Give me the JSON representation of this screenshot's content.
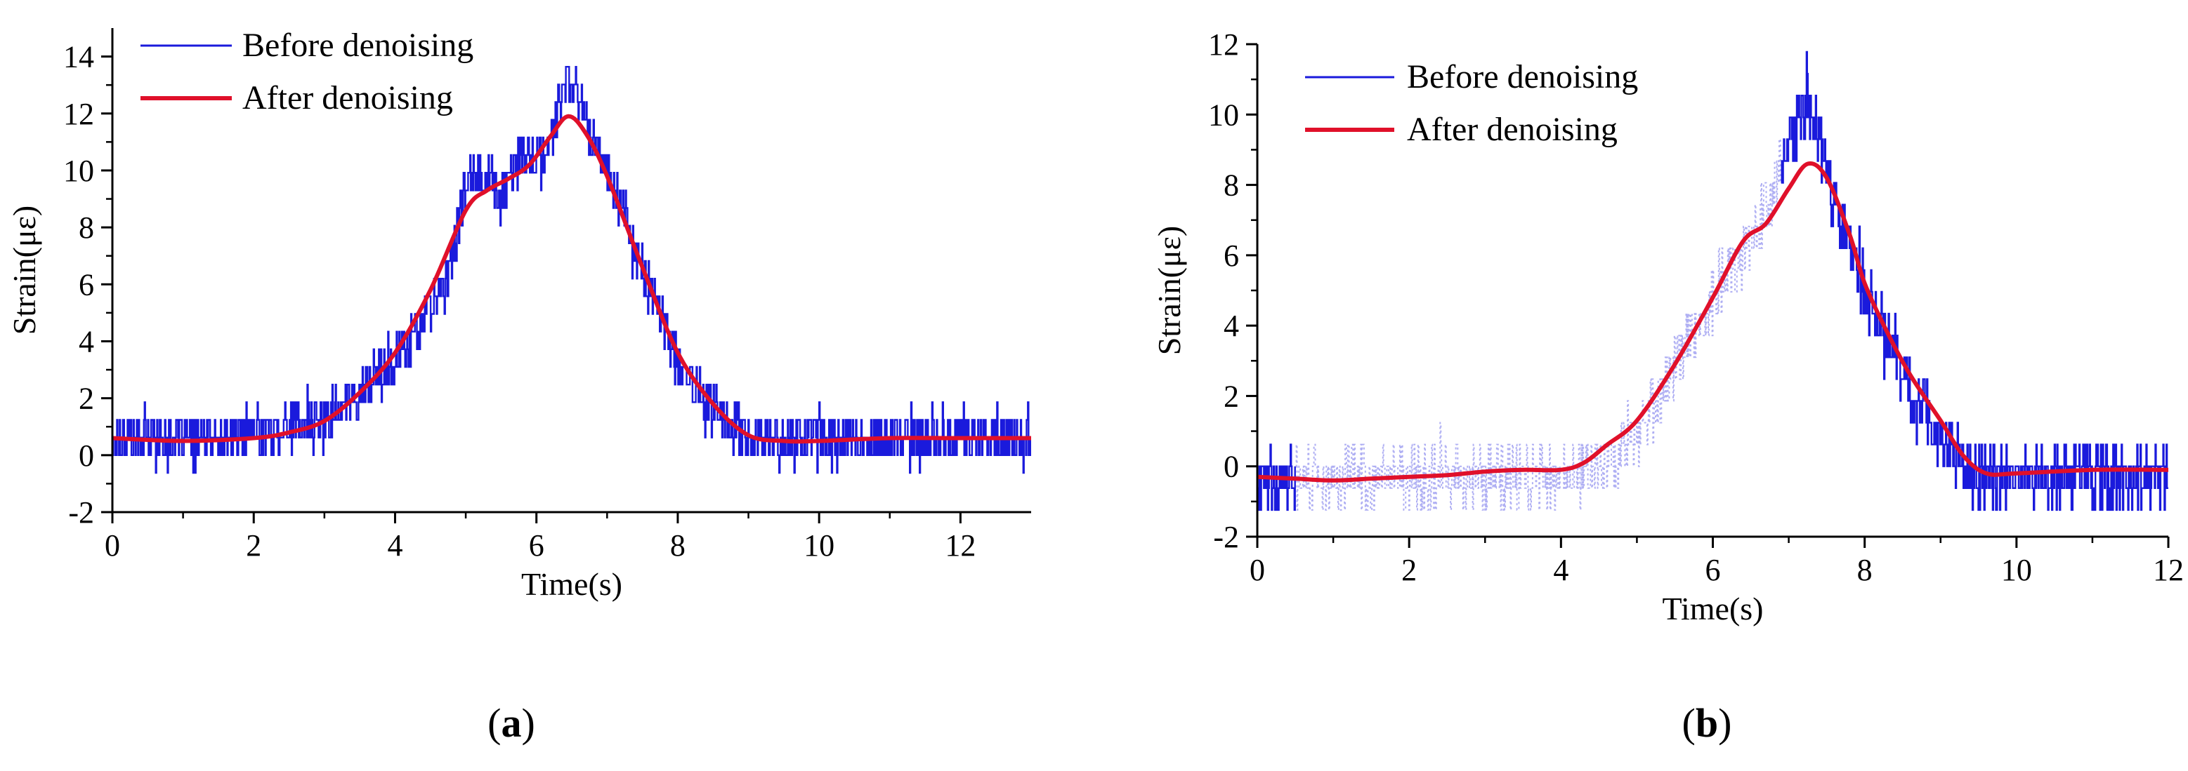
{
  "chart_data": [
    {
      "panel_label_open": "(",
      "panel_label": "a",
      "panel_label_close": ")",
      "type": "line",
      "title": "",
      "xlabel": "Time(s)",
      "ylabel": "Strain(με)",
      "xlim": [
        0,
        13
      ],
      "ylim": [
        -2,
        15
      ],
      "xticks": [
        0,
        2,
        4,
        6,
        8,
        10,
        12
      ],
      "xtick_labels": [
        "0",
        "2",
        "4",
        "6",
        "8",
        "10",
        "12"
      ],
      "yticks": [
        -2,
        0,
        2,
        4,
        6,
        8,
        10,
        12,
        14
      ],
      "ytick_labels": [
        "-2",
        "0",
        "2",
        "4",
        "6",
        "8",
        "10",
        "12",
        "14"
      ],
      "legend_position": "top-left",
      "series": [
        {
          "name": "Before denoising",
          "color": "#1a1adc",
          "style": "noisy-stepped",
          "noise_amplitude": 0.75,
          "x": [
            0,
            0.5,
            1,
            1.5,
            2,
            2.5,
            3,
            3.5,
            4,
            4.5,
            4.8,
            5,
            5.3,
            5.5,
            5.7,
            5.9,
            6.1,
            6.3,
            6.45,
            6.6,
            6.8,
            7,
            7.3,
            7.6,
            8,
            8.5,
            9,
            9.5,
            10,
            11,
            12,
            13
          ],
          "y": [
            0.6,
            0.6,
            0.6,
            0.6,
            0.8,
            1.0,
            1.3,
            2.2,
            3.4,
            5.0,
            6.8,
            9.6,
            10.0,
            9.0,
            10.2,
            10.5,
            10.3,
            12.2,
            13.3,
            12.4,
            11.2,
            10.0,
            8.0,
            5.8,
            3.2,
            1.6,
            0.6,
            0.6,
            0.6,
            0.6,
            0.6,
            0.6
          ]
        },
        {
          "name": "After denoising",
          "color": "#e0102a",
          "style": "smooth",
          "x": [
            0,
            1,
            2,
            2.5,
            3,
            3.5,
            4,
            4.5,
            5,
            5.3,
            5.6,
            5.9,
            6.2,
            6.45,
            6.7,
            7,
            7.5,
            8,
            8.5,
            9,
            9.5,
            10,
            11,
            12,
            13
          ],
          "y": [
            0.6,
            0.5,
            0.6,
            0.8,
            1.2,
            2.2,
            3.6,
            5.8,
            8.6,
            9.3,
            9.7,
            10.2,
            11.2,
            11.9,
            11.3,
            9.8,
            6.6,
            3.6,
            1.8,
            0.7,
            0.5,
            0.5,
            0.6,
            0.6,
            0.6
          ]
        }
      ]
    },
    {
      "panel_label_open": "(",
      "panel_label": "b",
      "panel_label_close": ")",
      "type": "line",
      "title": "",
      "xlabel": "Time(s)",
      "ylabel": "Strain(με)",
      "xlim": [
        0,
        12
      ],
      "ylim": [
        -2,
        12
      ],
      "xticks": [
        0,
        2,
        4,
        6,
        8,
        10,
        12
      ],
      "xtick_labels": [
        "0",
        "2",
        "4",
        "6",
        "8",
        "10",
        "12"
      ],
      "yticks": [
        -2,
        0,
        2,
        4,
        6,
        8,
        10,
        12
      ],
      "ytick_labels": [
        "-2",
        "0",
        "2",
        "4",
        "6",
        "8",
        "10",
        "12"
      ],
      "legend_position": "top-left",
      "series": [
        {
          "name": "Before denoising",
          "color": "#1a1adc",
          "style": "noisy-stepped",
          "noise_amplitude": 0.8,
          "faded_range": [
            0.5,
            6.9
          ],
          "x": [
            0,
            0.5,
            1,
            2,
            3,
            4,
            4.5,
            5,
            5.5,
            6,
            6.5,
            6.9,
            7.1,
            7.25,
            7.4,
            7.6,
            8,
            8.5,
            9,
            9.4,
            9.7,
            10,
            11,
            12
          ],
          "y": [
            -0.3,
            -0.3,
            -0.3,
            -0.3,
            -0.3,
            -0.3,
            0.0,
            0.8,
            2.8,
            4.8,
            6.6,
            8.4,
            9.6,
            10.4,
            9.4,
            7.4,
            5.0,
            2.6,
            0.9,
            -0.2,
            -0.3,
            -0.3,
            -0.3,
            -0.3
          ]
        },
        {
          "name": "After denoising",
          "color": "#e0102a",
          "style": "smooth",
          "x": [
            0,
            0.5,
            1,
            1.5,
            2,
            2.5,
            3,
            3.5,
            4,
            4.3,
            4.6,
            5,
            5.5,
            6,
            6.4,
            6.7,
            7,
            7.25,
            7.5,
            7.8,
            8,
            8.3,
            8.6,
            9,
            9.3,
            9.6,
            10,
            11,
            12
          ],
          "y": [
            -0.3,
            -0.35,
            -0.4,
            -0.35,
            -0.3,
            -0.25,
            -0.15,
            -0.1,
            -0.1,
            0.1,
            0.6,
            1.3,
            2.9,
            4.8,
            6.4,
            6.9,
            7.9,
            8.6,
            8.2,
            6.6,
            5.2,
            3.8,
            2.6,
            1.3,
            0.3,
            -0.2,
            -0.2,
            -0.1,
            -0.1
          ]
        }
      ]
    }
  ]
}
